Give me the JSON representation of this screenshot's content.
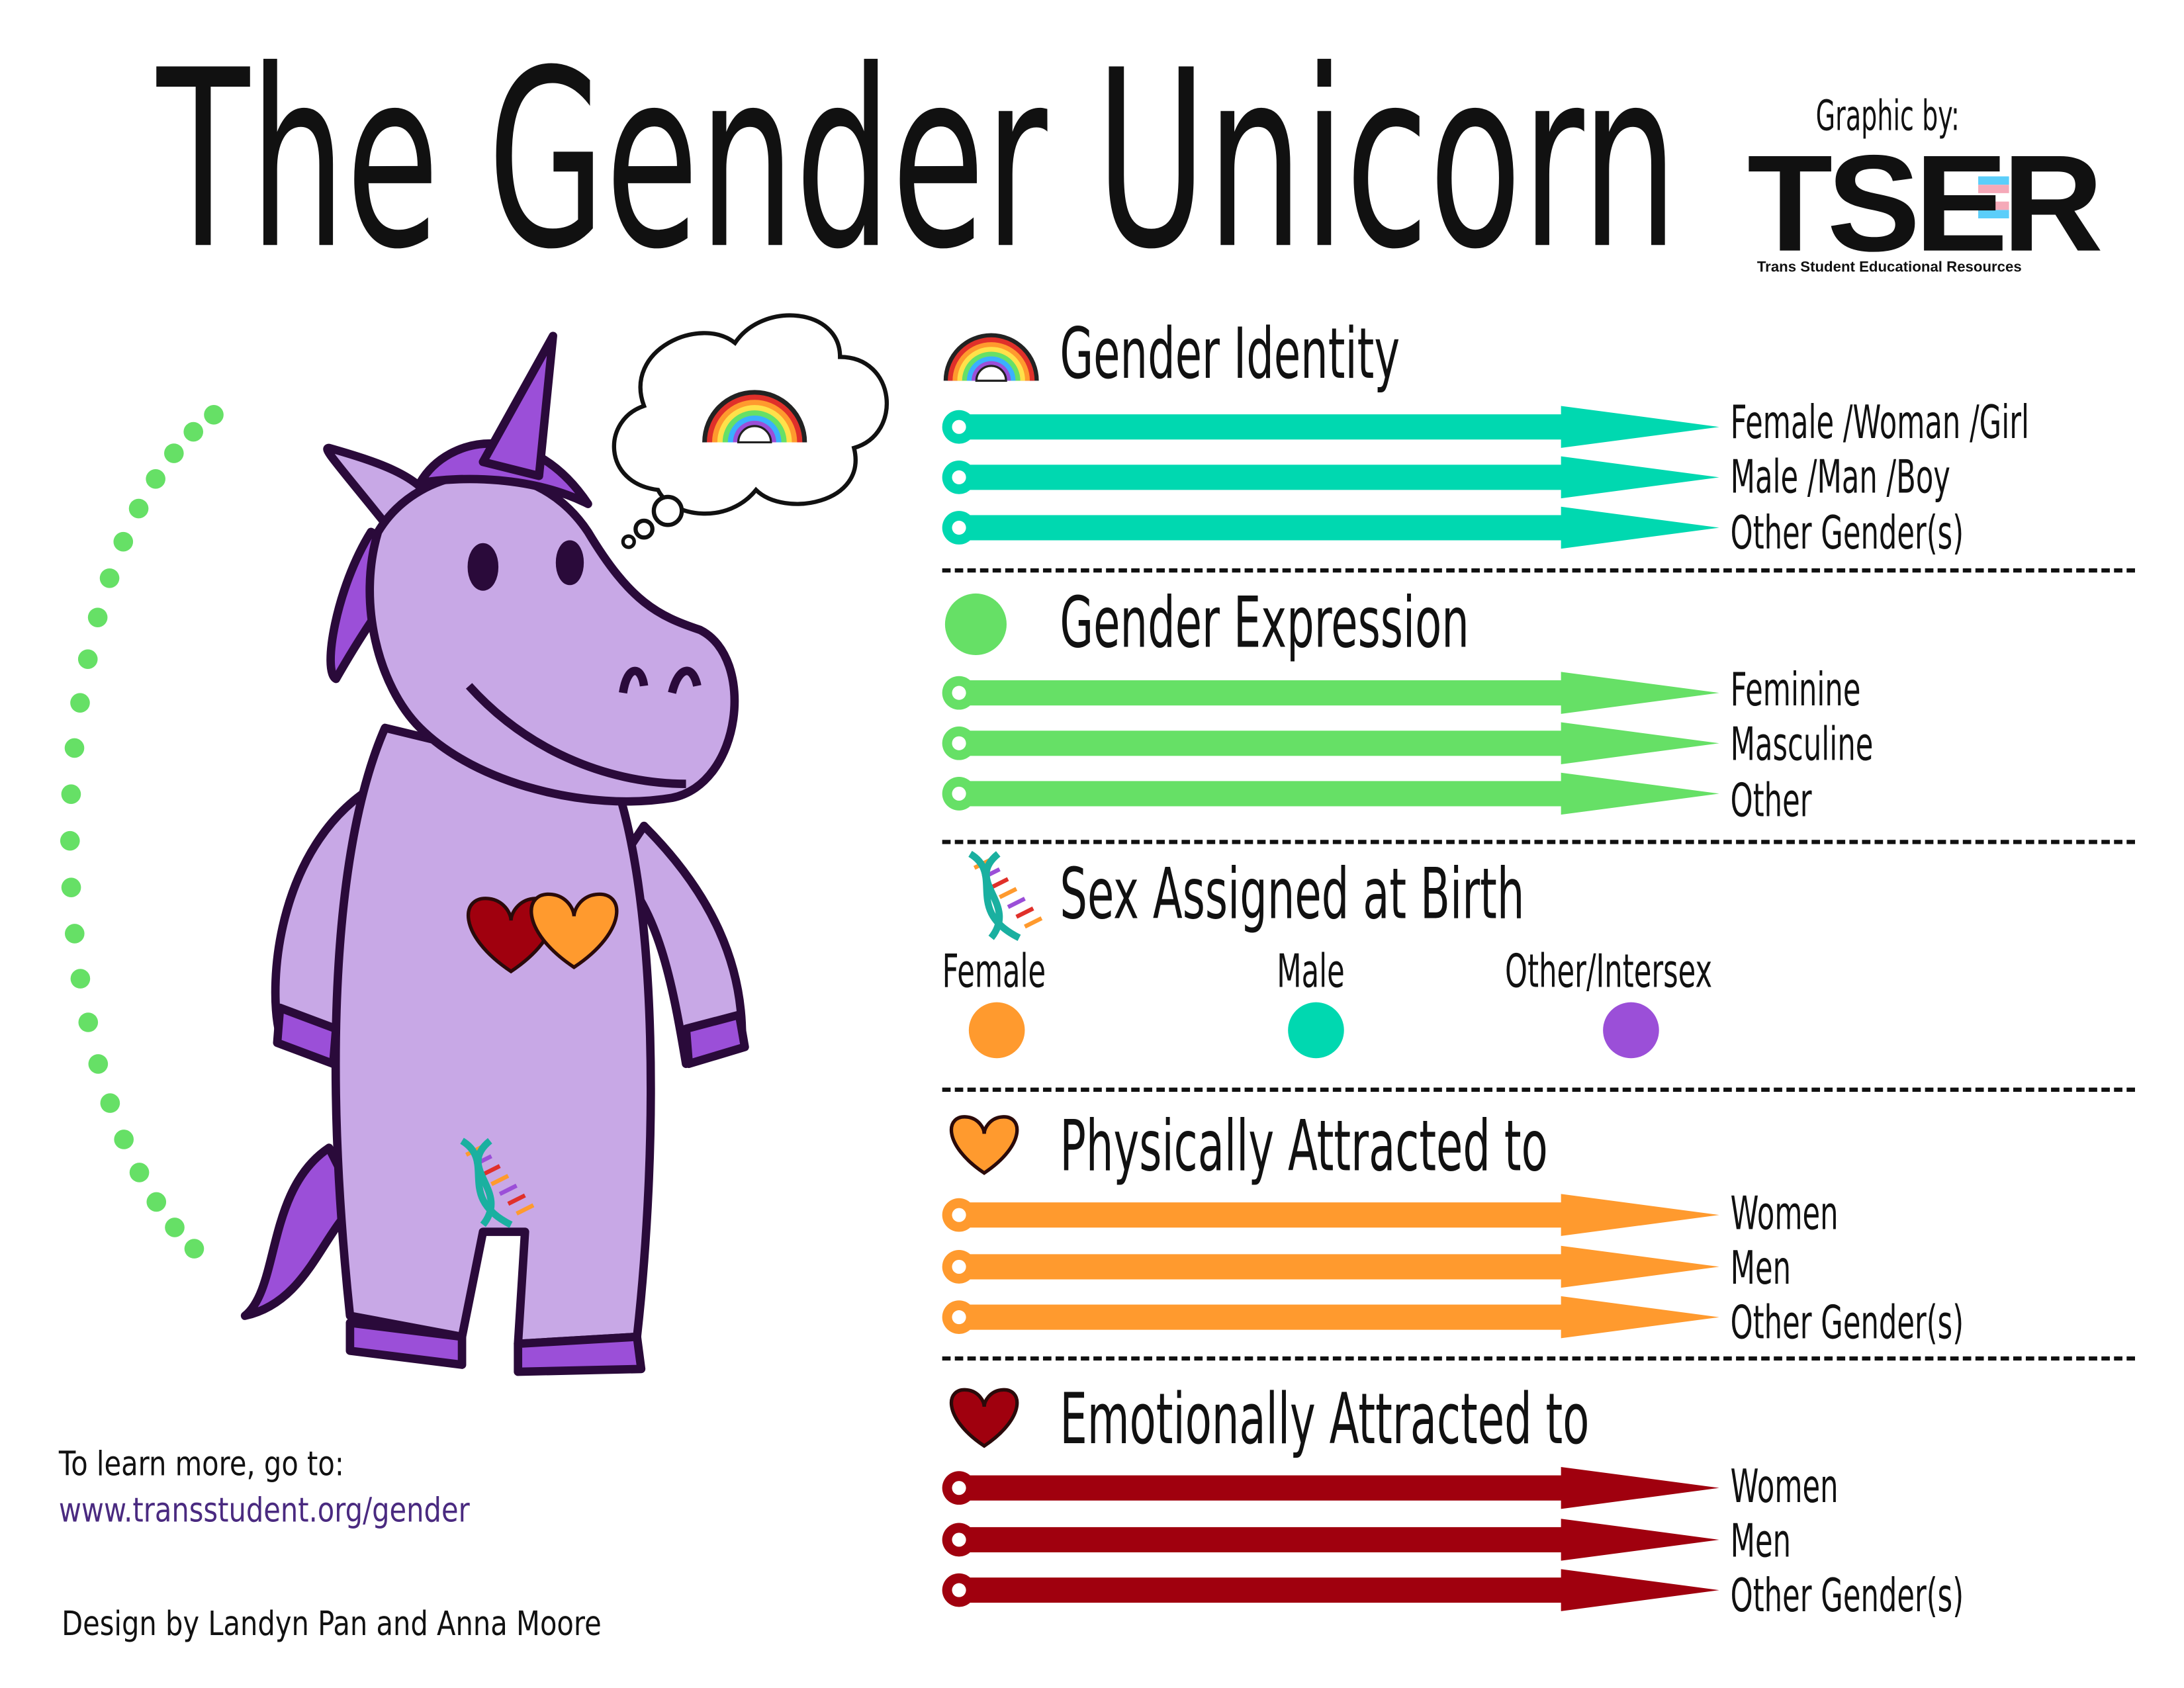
{
  "title": "The Gender Unicorn",
  "credit": {
    "label": "Graphic by:",
    "logo": "TSER",
    "logo_subtitle": "Trans Student Educational Resources",
    "flag_colors": [
      "#5bcefa",
      "#f5a9b8",
      "#ffffff"
    ]
  },
  "colors": {
    "gender_identity": "#00d8b0",
    "gender_expression": "#66e066",
    "female": "#ff9a2e",
    "male": "#00d8b0",
    "other_intersex": "#9b4fd8",
    "physical": "#ff9a2e",
    "emotional": "#a0000e",
    "unicorn": "#c8a8e6",
    "unicorn_dark": "#9b4fd8",
    "outline": "#2a0a3a"
  },
  "sections": [
    {
      "title": "Gender Identity",
      "icon": "rainbow-icon",
      "options": [
        "Female /Woman /Girl",
        "Male /Man /Boy",
        "Other Gender(s)"
      ]
    },
    {
      "title": "Gender Expression",
      "icon": "circle-icon",
      "options": [
        "Feminine",
        "Masculine",
        "Other"
      ]
    },
    {
      "title": "Sex Assigned at Birth",
      "icon": "dna-icon",
      "options": [
        "Female",
        "Male",
        "Other/Intersex"
      ]
    },
    {
      "title": "Physically Attracted to",
      "icon": "heart-icon",
      "options": [
        "Women",
        "Men",
        "Other Gender(s)"
      ]
    },
    {
      "title": "Emotionally Attracted to",
      "icon": "heart-icon",
      "options": [
        "Women",
        "Men",
        "Other Gender(s)"
      ]
    }
  ],
  "footer": {
    "learn_more": "To learn more, go to:",
    "url": "www.transstudent.org/gender",
    "design_by": "Design by Landyn Pan and Anna Moore"
  }
}
